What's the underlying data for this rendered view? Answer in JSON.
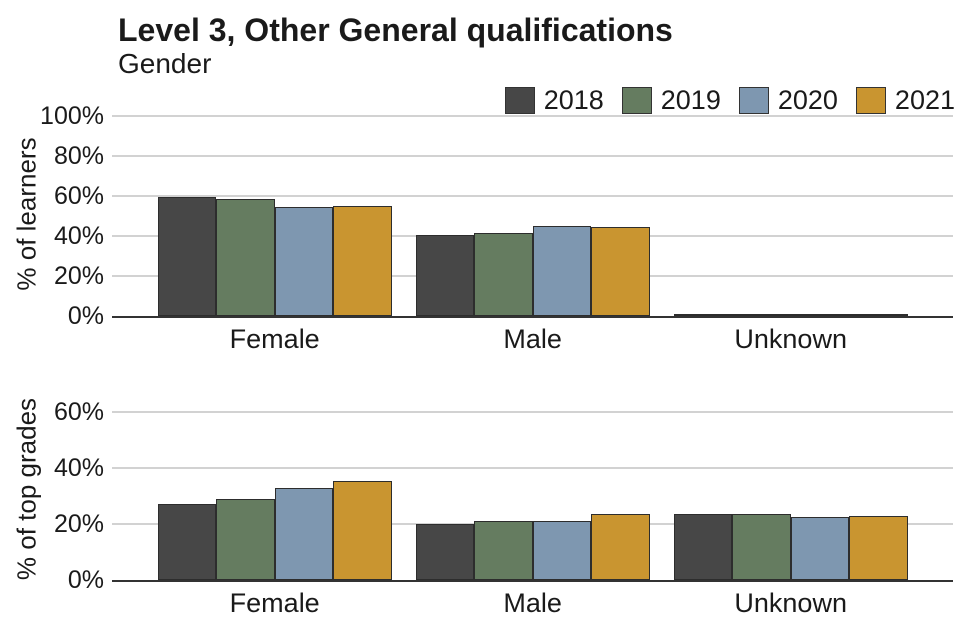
{
  "header": {
    "title": "Level 3, Other General qualifications",
    "subtitle": "Gender"
  },
  "chart_data": [
    {
      "id": "learners",
      "type": "bar",
      "title": "Level 3, Other General qualifications",
      "subtitle": "Gender",
      "ylabel": "% of learners",
      "xlabel": "",
      "categories": [
        "Female",
        "Male",
        "Unknown"
      ],
      "series": [
        {
          "name": "2018",
          "color": "#474747",
          "values": [
            59.5,
            40.5,
            0.1
          ]
        },
        {
          "name": "2019",
          "color": "#657c60",
          "values": [
            58.5,
            41.5,
            0.1
          ]
        },
        {
          "name": "2020",
          "color": "#7e97b0",
          "values": [
            54.5,
            45.0,
            0.5
          ]
        },
        {
          "name": "2021",
          "color": "#c99530",
          "values": [
            55.0,
            44.5,
            0.5
          ]
        }
      ],
      "yticks": [
        0,
        20,
        40,
        60,
        80,
        100
      ],
      "ytick_labels": [
        "0%",
        "20%",
        "40%",
        "60%",
        "80%",
        "100%"
      ],
      "ylim": [
        0,
        102
      ],
      "grid": true,
      "legend_position": "top-right"
    },
    {
      "id": "top-grades",
      "type": "bar",
      "ylabel": "% of top grades",
      "xlabel": "",
      "categories": [
        "Female",
        "Male",
        "Unknown"
      ],
      "series": [
        {
          "name": "2018",
          "color": "#474747",
          "values": [
            27.0,
            20.0,
            23.5
          ]
        },
        {
          "name": "2019",
          "color": "#657c60",
          "values": [
            29.0,
            21.0,
            23.5
          ]
        },
        {
          "name": "2020",
          "color": "#7e97b0",
          "values": [
            33.0,
            21.0,
            22.5
          ]
        },
        {
          "name": "2021",
          "color": "#c99530",
          "values": [
            35.5,
            23.5,
            23.0
          ]
        }
      ],
      "yticks": [
        0,
        20,
        40,
        60
      ],
      "ytick_labels": [
        "0%",
        "20%",
        "40%",
        "60%"
      ],
      "ylim": [
        0,
        65
      ],
      "grid": true,
      "legend_position": "none"
    }
  ]
}
